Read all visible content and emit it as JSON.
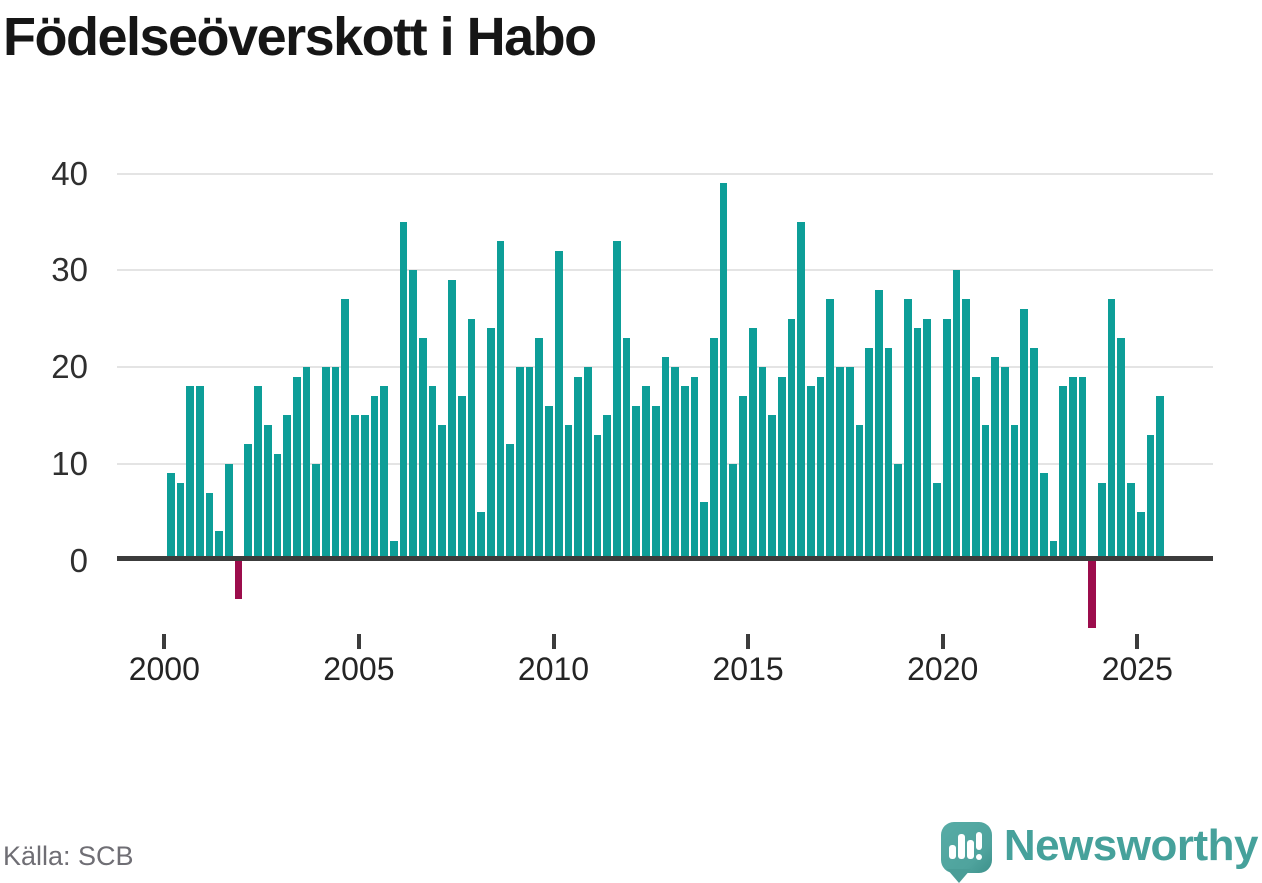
{
  "title": "Födelseöverskott i Habo",
  "source": "Källa: SCB",
  "brand": {
    "name": "Newsworthy",
    "icon": "bar-chart-speech-bubble"
  },
  "colors": {
    "bar_positive": "#0d9e98",
    "bar_negative": "#9c0d4c",
    "gridline": "#e4e4e4",
    "axis": "#3c3c3c",
    "brand_teal": "#46a19b"
  },
  "chart_data": {
    "type": "bar",
    "title": "Födelseöverskott i Habo",
    "xlabel": "",
    "ylabel": "",
    "frequency": "quarterly",
    "x_range": "2000Q1–2025Q3",
    "ylim": [
      -8,
      40
    ],
    "y_ticks": [
      0,
      10,
      20,
      30,
      40
    ],
    "x_tick_labels": [
      "2000",
      "2005",
      "2010",
      "2015",
      "2020",
      "2025"
    ],
    "grid": "horizontal",
    "legend": "none",
    "negative_quarters": [
      "2001Q4",
      "2023Q4"
    ],
    "values_by_year": {
      "2000": [
        9,
        8,
        18,
        18
      ],
      "2001": [
        7,
        3,
        10,
        -4
      ],
      "2002": [
        12,
        18,
        14,
        11
      ],
      "2003": [
        15,
        19,
        20,
        10
      ],
      "2004": [
        20,
        20,
        27,
        15
      ],
      "2005": [
        15,
        17,
        18,
        2
      ],
      "2006": [
        35,
        30,
        23,
        18
      ],
      "2007": [
        14,
        29,
        17,
        25
      ],
      "2008": [
        5,
        24,
        33,
        12
      ],
      "2009": [
        20,
        20,
        23,
        16
      ],
      "2010": [
        32,
        14,
        19,
        20
      ],
      "2011": [
        13,
        15,
        33,
        23
      ],
      "2012": [
        16,
        18,
        16,
        21
      ],
      "2013": [
        20,
        18,
        19,
        6
      ],
      "2014": [
        23,
        39,
        10,
        17
      ],
      "2015": [
        24,
        20,
        15,
        19
      ],
      "2016": [
        25,
        35,
        18,
        19
      ],
      "2017": [
        27,
        20,
        20,
        14
      ],
      "2018": [
        22,
        28,
        22,
        10
      ],
      "2019": [
        27,
        24,
        25,
        8
      ],
      "2020": [
        25,
        30,
        27,
        19
      ],
      "2021": [
        14,
        21,
        20,
        14
      ],
      "2022": [
        26,
        22,
        9,
        2
      ],
      "2023": [
        18,
        19,
        19,
        -7
      ],
      "2024": [
        8,
        27,
        23,
        8
      ],
      "2025": [
        5,
        13,
        17
      ]
    }
  }
}
